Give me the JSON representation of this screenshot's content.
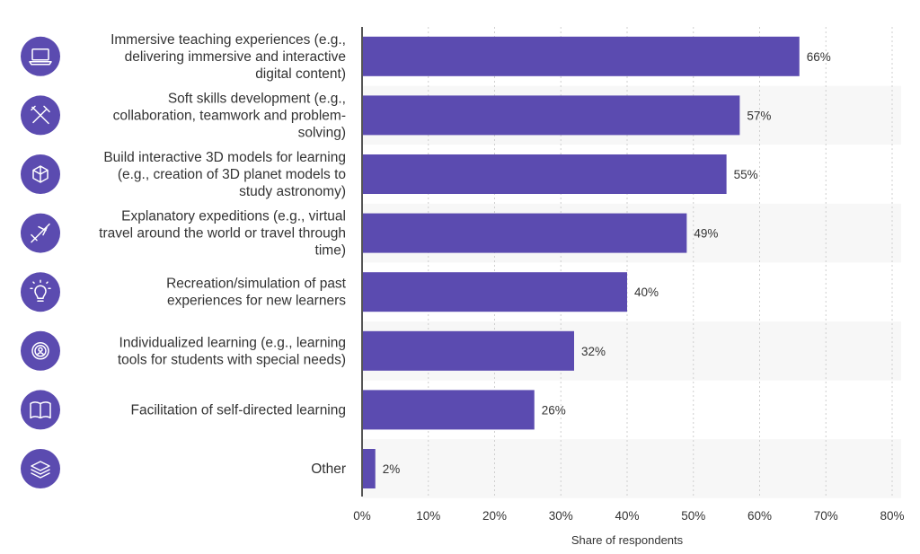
{
  "colors": {
    "bar": "#5b4bb0",
    "icon_bg": "#5b4bb0",
    "grid": "#cfcfcf",
    "band": "#f7f7f7",
    "axis": "#555555"
  },
  "chart_data": {
    "type": "bar",
    "orientation": "horizontal",
    "categories": [
      "Immersive teaching experiences (e.g., delivering immersive and interactive digital content)",
      "Soft skills development (e.g., collaboration, teamwork and problem-solving)",
      "Build interactive 3D models for learning (e.g., creation of 3D planet models to study astronomy)",
      "Explanatory expeditions (e.g., virtual travel around the world or travel through time)",
      "Recreation/simulation of past experiences for new learners",
      "Individualized learning (e.g., learning tools for students with special needs)",
      "Facilitation of self-directed learning",
      "Other"
    ],
    "category_lines": [
      [
        "Immersive teaching experiences (e.g.,",
        "delivering immersive and interactive",
        "digital content)"
      ],
      [
        "Soft skills development (e.g.,",
        "collaboration, teamwork and problem-",
        "solving)"
      ],
      [
        "Build interactive 3D models for learning",
        "(e.g., creation of 3D planet models to",
        "study astronomy)"
      ],
      [
        "Explanatory expeditions (e.g., virtual",
        "travel around the world or travel through",
        "time)"
      ],
      [
        "Recreation/simulation of past",
        "experiences for new learners"
      ],
      [
        "Individualized learning (e.g., learning",
        "tools for students with special needs)"
      ],
      [
        "Facilitation of self-directed learning"
      ],
      [
        "Other"
      ]
    ],
    "values": [
      66,
      57,
      55,
      49,
      40,
      32,
      26,
      2
    ],
    "value_labels": [
      "66%",
      "57%",
      "55%",
      "49%",
      "40%",
      "32%",
      "26%",
      "2%"
    ],
    "icons": [
      "laptop-icon",
      "tools-icon",
      "cube-icon",
      "airplane-icon",
      "lightbulb-icon",
      "gear-user-icon",
      "book-icon",
      "layers-icon"
    ],
    "xlabel": "Share of respondents",
    "xlim": [
      0,
      80
    ],
    "xticks": [
      0,
      10,
      20,
      30,
      40,
      50,
      60,
      70,
      80
    ],
    "xtick_labels": [
      "0%",
      "10%",
      "20%",
      "30%",
      "40%",
      "50%",
      "60%",
      "70%",
      "80%"
    ],
    "grid": true,
    "legend": false
  }
}
